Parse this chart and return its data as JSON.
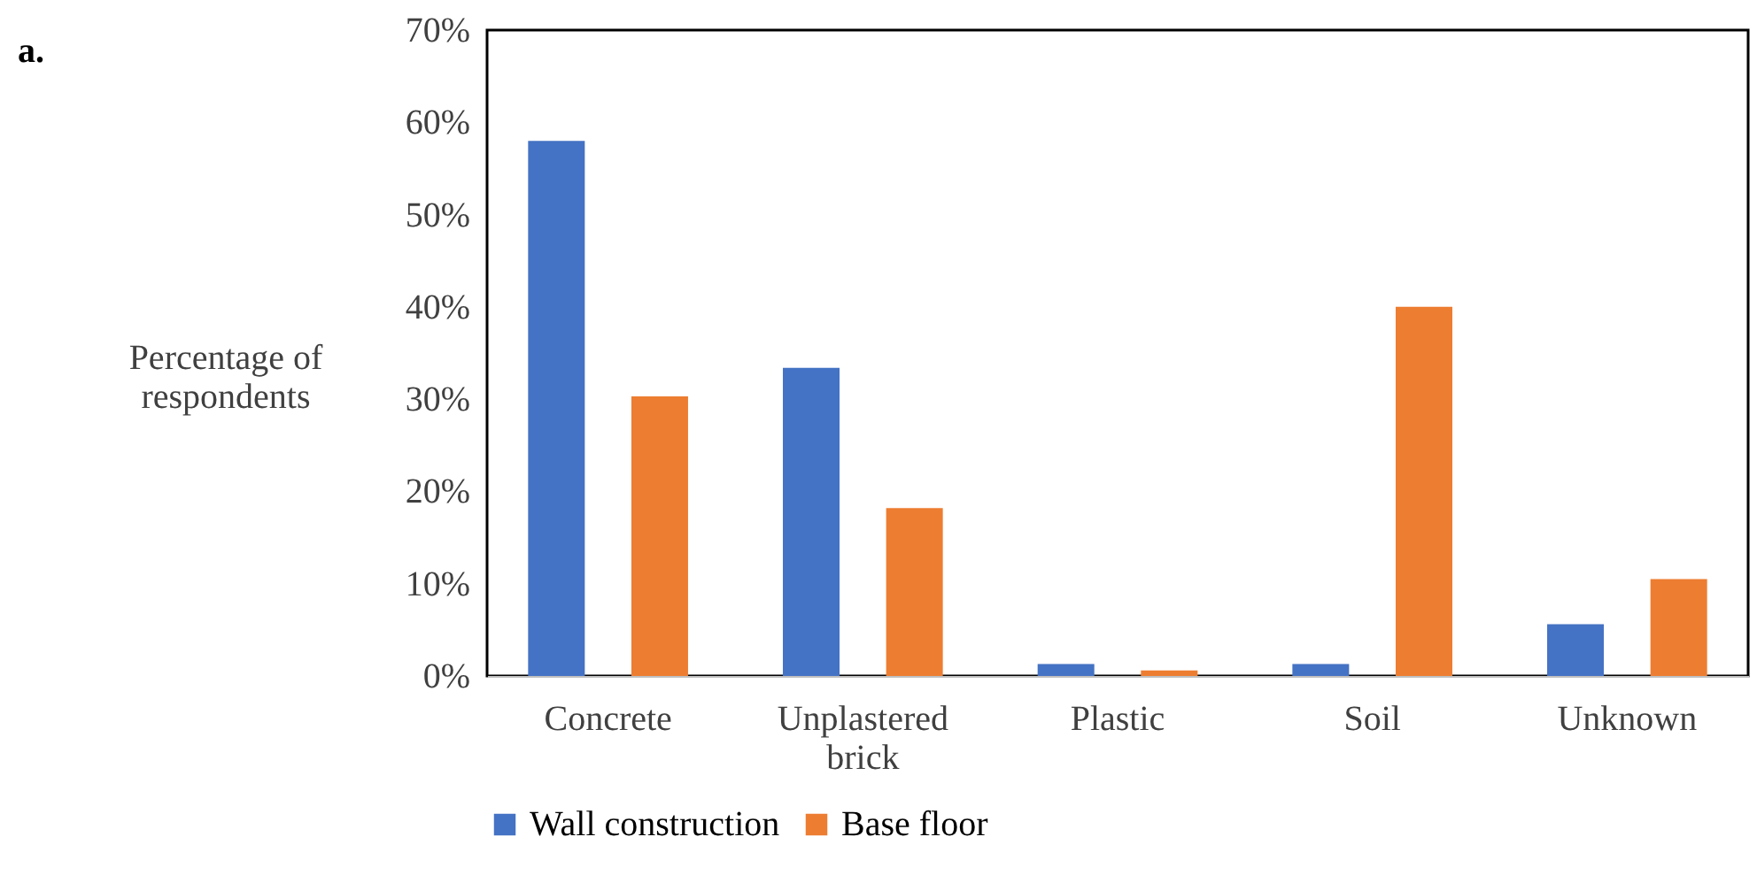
{
  "chart_data": {
    "type": "bar",
    "annotations": [
      "a."
    ],
    "ylabel": "Percentage of respondents",
    "categories": [
      "Concrete",
      "Unplastered brick",
      "Plastic",
      "Soil",
      "Unknown"
    ],
    "series": [
      {
        "name": "Wall construction",
        "color": "#4472c4",
        "values": [
          58,
          33.4,
          1.3,
          1.3,
          5.6
        ]
      },
      {
        "name": "Base floor",
        "color": "#ed7d31",
        "values": [
          30.3,
          18.2,
          0.6,
          40,
          10.5
        ]
      }
    ],
    "ylim": [
      0,
      70
    ],
    "yticks": [
      {
        "value": 0,
        "label": "0%"
      },
      {
        "value": 10,
        "label": "10%"
      },
      {
        "value": 20,
        "label": "20%"
      },
      {
        "value": 30,
        "label": "30%"
      },
      {
        "value": 40,
        "label": "40%"
      },
      {
        "value": 50,
        "label": "50%"
      },
      {
        "value": 60,
        "label": "60%"
      },
      {
        "value": 70,
        "label": "70%"
      }
    ],
    "grid": false,
    "legend": "bottom"
  }
}
